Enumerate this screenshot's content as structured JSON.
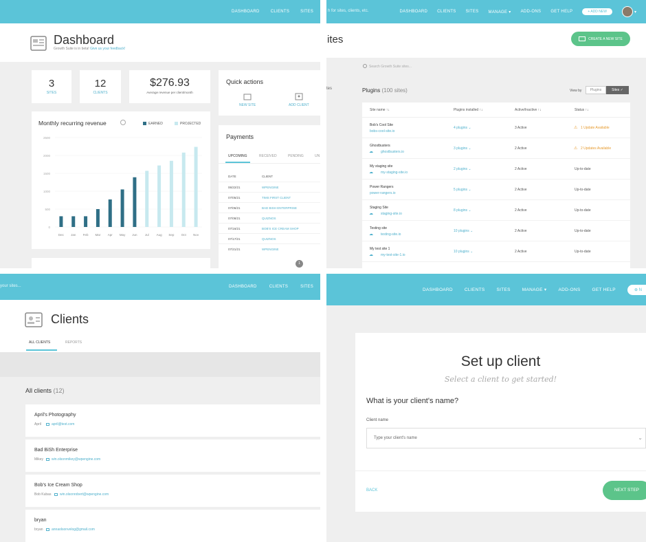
{
  "colors": {
    "accent": "#5bc4d8",
    "earned": "#2f6f86",
    "projected": "#c7e9ef",
    "green": "#5cc48a",
    "warning": "#e69a2e"
  },
  "q1": {
    "nav": [
      "DASHBOARD",
      "CLIENTS",
      "SITES"
    ],
    "title": "Dashboard",
    "subtitle_a": "Growth Suite is in beta!",
    "subtitle_b": "Give us your feedback!",
    "stats": [
      {
        "value": "3",
        "label": "SITES"
      },
      {
        "value": "12",
        "label": "CLIENTS"
      }
    ],
    "revenue": {
      "value": "$276.93",
      "label": "Average revenue per client/month"
    },
    "quick": {
      "title": "Quick actions",
      "items": [
        "NEW SITE",
        "ADD CLIENT"
      ]
    },
    "chart_title": "Monthly recurring revenue",
    "payments": {
      "title": "Payments",
      "tabs": [
        "UPCOMING",
        "RECEIVED",
        "PENDING",
        "UN"
      ],
      "headers": [
        "DATE",
        "CLIENT"
      ],
      "rows": [
        [
          "06/22/21",
          "WPENGINE"
        ],
        [
          "07/05/21",
          "TIMS FIRST CLIENT"
        ],
        [
          "07/06/21",
          "BAD BISH ENTERPRISE"
        ],
        [
          "07/08/21",
          "QUIZNOS"
        ],
        [
          "07/16/21",
          "BOB'S ICE CREAM SHOP"
        ],
        [
          "07/17/21",
          "QUIZNOS"
        ],
        [
          "07/21/21",
          "WPENGINE"
        ]
      ],
      "badge": "1"
    }
  },
  "chart_data": {
    "type": "bar",
    "title": "Monthly recurring revenue",
    "categories": [
      "Dec",
      "Jan",
      "Feb",
      "Mar",
      "Apr",
      "May",
      "Jun",
      "Jul",
      "Aug",
      "Sep",
      "Oct",
      "Nov"
    ],
    "series": [
      {
        "name": "EARNED",
        "values": [
          300,
          300,
          300,
          500,
          770,
          1050,
          1390,
          null,
          null,
          null,
          null,
          null
        ]
      },
      {
        "name": "PROJECTED",
        "values": [
          null,
          null,
          null,
          null,
          null,
          null,
          null,
          1570,
          1720,
          1850,
          2080,
          2240
        ]
      }
    ],
    "yticks": [
      "2500",
      "2000",
      "1500",
      "1000",
      "500",
      "0"
    ],
    "ylim": [
      0,
      2500
    ]
  },
  "q2": {
    "search_placeholder": "h for sites, clients, etc.",
    "nav": [
      "DASHBOARD",
      "CLIENTS",
      "SITES",
      "MANAGE",
      "ADD-ONS",
      "GET HELP"
    ],
    "add_new": "ADD NEW",
    "title": "ites",
    "create_btn": "CREATE A NEW SITE",
    "search2": "Search Growth Suite sites...",
    "side_frag": "tes",
    "plugins_title": "Plugins",
    "plugins_count": "(100 sites)",
    "viewby": "View by",
    "view_opts": [
      "Plugins",
      "Sites"
    ],
    "headers": [
      "Site name",
      "Plugins installed",
      "Active/Inactive",
      "Status"
    ],
    "rows": [
      {
        "name": "Bob's Cool Site",
        "url": "bobs-cool-site.io",
        "plugins": "4 plugins",
        "active": "3 Active",
        "status": "1 Update Available",
        "warn": true,
        "cloud": false
      },
      {
        "name": "Ghostbusters",
        "url": "ghostbusters.io",
        "plugins": "3 plugins",
        "active": "2 Active",
        "status": "2 Updates Available",
        "warn": true,
        "cloud": true
      },
      {
        "name": "My staging site",
        "url": "my-staging-site.io",
        "plugins": "2 plugins",
        "active": "2 Active",
        "status": "Up-to-date",
        "warn": false,
        "cloud": true
      },
      {
        "name": "Power Rangers",
        "url": "power-rangers.io",
        "plugins": "5 plugins",
        "active": "2 Active",
        "status": "Up-to-date",
        "warn": false,
        "cloud": false
      },
      {
        "name": "Staging Site",
        "url": "staging-site.io",
        "plugins": "8 plugins",
        "active": "2 Active",
        "status": "Up-to-date",
        "warn": false,
        "cloud": true
      },
      {
        "name": "Testing site",
        "url": "testing-site.io",
        "plugins": "10 plugins",
        "active": "2 Active",
        "status": "Up-to-date",
        "warn": false,
        "cloud": true
      },
      {
        "name": "My test site 1",
        "url": "my-test-site-1.io",
        "plugins": "10 plugins",
        "active": "2 Active",
        "status": "Up-to-date",
        "warn": false,
        "cloud": true
      }
    ]
  },
  "q3": {
    "search_frag": "your sites...",
    "nav": [
      "DASHBOARD",
      "CLIENTS",
      "SITES"
    ],
    "title": "Clients",
    "tabs": [
      "ALL CLIENTS",
      "REPORTS"
    ],
    "list_title": "All clients",
    "list_count": "(12)",
    "clients": [
      {
        "name": "April's Photography",
        "person": "April",
        "email": "april@test.com"
      },
      {
        "name": "Bad BiSh Enterprise",
        "person": "Mikey",
        "email": "win.olsonmikey@wpengine.com"
      },
      {
        "name": "Bob's Ice Cream Shop",
        "person": "Bob Kubas",
        "email": "win.olsonrobert@wpengine.com"
      },
      {
        "name": "bryan",
        "person": "bryan",
        "email": "annaolsonvelog@gmail.com"
      }
    ]
  },
  "q4": {
    "nav": [
      "DASHBOARD",
      "CLIENTS",
      "SITES",
      "MANAGE",
      "ADD-ONS",
      "GET HELP"
    ],
    "btn_frag": "N",
    "title": "Set up client",
    "subtitle": "Select a client to get started!",
    "question": "What is your client's name?",
    "field_label": "Client name",
    "placeholder": "Type your client's name",
    "back": "BACK",
    "next": "NEXT STEP"
  }
}
